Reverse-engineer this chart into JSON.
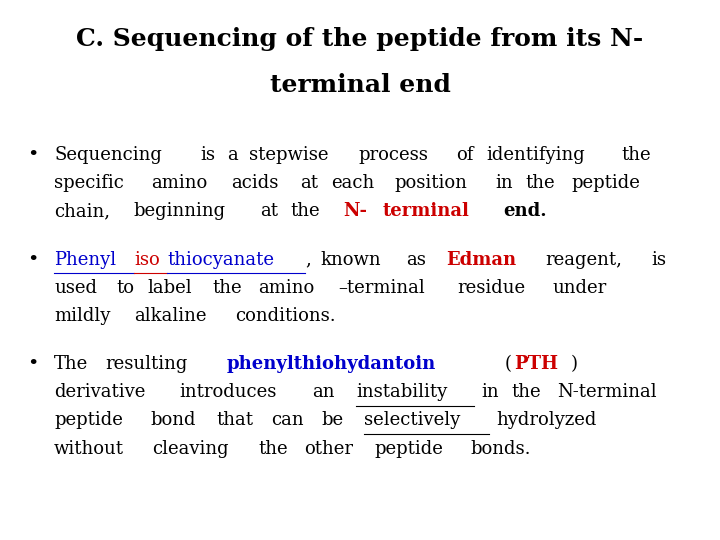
{
  "background_color": "#ffffff",
  "title_line1": "C. Sequencing of the peptide from its N-",
  "title_line2": "terminal end",
  "title_fontsize": 18,
  "title_color": "#000000",
  "bullet_fontsize": 13,
  "red_color": "#cc0000",
  "blue_color": "#0000cc",
  "black_color": "#000000",
  "bullet1_segments": [
    {
      "text": "Sequencing is a stepwise process of identifying the specific amino acids at each position in the peptide chain, beginning at the ",
      "color": "#000000",
      "bold": false,
      "underline": false
    },
    {
      "text": "N- terminal",
      "color": "#cc0000",
      "bold": true,
      "underline": false
    },
    {
      "text": " end.",
      "color": "#000000",
      "bold": true,
      "underline": false
    }
  ],
  "bullet2_segments": [
    {
      "text": "Phenyl",
      "color": "#0000cc",
      "bold": false,
      "underline": true
    },
    {
      "text": "iso",
      "color": "#cc0000",
      "bold": false,
      "underline": true
    },
    {
      "text": "thiocyanate",
      "color": "#0000cc",
      "bold": false,
      "underline": true
    },
    {
      "text": ", known as ",
      "color": "#000000",
      "bold": false,
      "underline": false
    },
    {
      "text": "Edman",
      "color": "#cc0000",
      "bold": true,
      "underline": false
    },
    {
      "text": " reagent, is used to label the amino –terminal residue under mildly alkaline conditions.",
      "color": "#000000",
      "bold": false,
      "underline": false
    }
  ],
  "bullet3_segments": [
    {
      "text": "The resulting ",
      "color": "#000000",
      "bold": false,
      "underline": false
    },
    {
      "text": "phenylthiohydantoin",
      "color": "#0000cc",
      "bold": true,
      "underline": false
    },
    {
      "text": " (",
      "color": "#000000",
      "bold": false,
      "underline": false
    },
    {
      "text": "PTH",
      "color": "#cc0000",
      "bold": true,
      "underline": false
    },
    {
      "text": ") derivative introduces an ",
      "color": "#000000",
      "bold": false,
      "underline": false
    },
    {
      "text": "instability",
      "color": "#000000",
      "bold": false,
      "underline": true
    },
    {
      "text": " in the N-terminal peptide bond that can be ",
      "color": "#000000",
      "bold": false,
      "underline": false
    },
    {
      "text": "selectively",
      "color": "#000000",
      "bold": false,
      "underline": true
    },
    {
      "text": " hydrolyzed without cleaving the other peptide bonds.",
      "color": "#000000",
      "bold": false,
      "underline": false
    }
  ]
}
